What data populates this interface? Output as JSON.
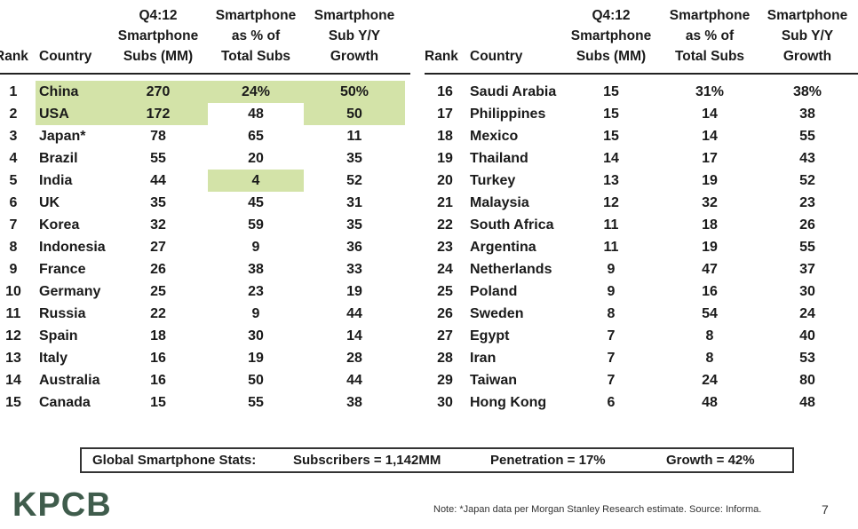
{
  "headers": {
    "rank": "Rank",
    "country": "Country",
    "subs": "Q4:12\nSmartphone\nSubs (MM)",
    "pct": "Smartphone\nas % of\nTotal Subs",
    "growth": "Smartphone\nSub Y/Y\nGrowth"
  },
  "left_rows": [
    {
      "rank": "1",
      "country": "China",
      "subs": "270",
      "pct": "24%",
      "growth": "50%"
    },
    {
      "rank": "2",
      "country": "USA",
      "subs": "172",
      "pct": "48",
      "growth": "50"
    },
    {
      "rank": "3",
      "country": "Japan*",
      "subs": "78",
      "pct": "65",
      "growth": "11"
    },
    {
      "rank": "4",
      "country": "Brazil",
      "subs": "55",
      "pct": "20",
      "growth": "35"
    },
    {
      "rank": "5",
      "country": "India",
      "subs": "44",
      "pct": "4",
      "growth": "52"
    },
    {
      "rank": "6",
      "country": "UK",
      "subs": "35",
      "pct": "45",
      "growth": "31"
    },
    {
      "rank": "7",
      "country": "Korea",
      "subs": "32",
      "pct": "59",
      "growth": "35"
    },
    {
      "rank": "8",
      "country": "Indonesia",
      "subs": "27",
      "pct": "9",
      "growth": "36"
    },
    {
      "rank": "9",
      "country": "France",
      "subs": "26",
      "pct": "38",
      "growth": "33"
    },
    {
      "rank": "10",
      "country": "Germany",
      "subs": "25",
      "pct": "23",
      "growth": "19"
    },
    {
      "rank": "11",
      "country": "Russia",
      "subs": "22",
      "pct": "9",
      "growth": "44"
    },
    {
      "rank": "12",
      "country": "Spain",
      "subs": "18",
      "pct": "30",
      "growth": "14"
    },
    {
      "rank": "13",
      "country": "Italy",
      "subs": "16",
      "pct": "19",
      "growth": "28"
    },
    {
      "rank": "14",
      "country": "Australia",
      "subs": "16",
      "pct": "50",
      "growth": "44"
    },
    {
      "rank": "15",
      "country": "Canada",
      "subs": "15",
      "pct": "55",
      "growth": "38"
    }
  ],
  "right_rows": [
    {
      "rank": "16",
      "country": "Saudi Arabia",
      "subs": "15",
      "pct": "31%",
      "growth": "38%"
    },
    {
      "rank": "17",
      "country": "Philippines",
      "subs": "15",
      "pct": "14",
      "growth": "38"
    },
    {
      "rank": "18",
      "country": "Mexico",
      "subs": "15",
      "pct": "14",
      "growth": "55"
    },
    {
      "rank": "19",
      "country": "Thailand",
      "subs": "14",
      "pct": "17",
      "growth": "43"
    },
    {
      "rank": "20",
      "country": "Turkey",
      "subs": "13",
      "pct": "19",
      "growth": "52"
    },
    {
      "rank": "21",
      "country": "Malaysia",
      "subs": "12",
      "pct": "32",
      "growth": "23"
    },
    {
      "rank": "22",
      "country": "South Africa",
      "subs": "11",
      "pct": "18",
      "growth": "26"
    },
    {
      "rank": "23",
      "country": "Argentina",
      "subs": "11",
      "pct": "19",
      "growth": "55"
    },
    {
      "rank": "24",
      "country": "Netherlands",
      "subs": "9",
      "pct": "47",
      "growth": "37"
    },
    {
      "rank": "25",
      "country": "Poland",
      "subs": "9",
      "pct": "16",
      "growth": "30"
    },
    {
      "rank": "26",
      "country": "Sweden",
      "subs": "8",
      "pct": "54",
      "growth": "24"
    },
    {
      "rank": "27",
      "country": "Egypt",
      "subs": "7",
      "pct": "8",
      "growth": "40"
    },
    {
      "rank": "28",
      "country": "Iran",
      "subs": "7",
      "pct": "8",
      "growth": "53"
    },
    {
      "rank": "29",
      "country": "Taiwan",
      "subs": "7",
      "pct": "24",
      "growth": "80"
    },
    {
      "rank": "30",
      "country": "Hong Kong",
      "subs": "6",
      "pct": "48",
      "growth": "48"
    }
  ],
  "highlight_color": "#d3e3a8",
  "stats": {
    "label": "Global Smartphone Stats:",
    "subscribers": "Subscribers = 1,142MM",
    "penetration": "Penetration = 17%",
    "growth": "Growth = 42%"
  },
  "logo": "KPCB",
  "note": "Note: *Japan data per Morgan Stanley Research estimate.  Source: Informa.",
  "page_number": "7"
}
